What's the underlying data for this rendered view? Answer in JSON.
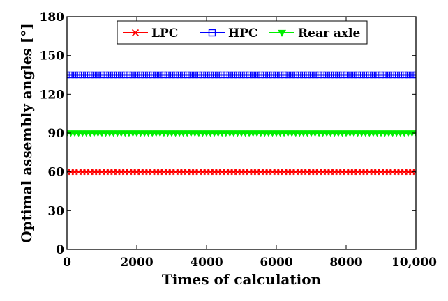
{
  "chart_data": {
    "type": "line",
    "title": "",
    "xlabel": "Times of calculation",
    "ylabel": "Optimal assembly angles [°]",
    "xlim": [
      0,
      10000
    ],
    "ylim": [
      0,
      180
    ],
    "x_ticks": [
      0,
      2000,
      4000,
      6000,
      8000,
      10000
    ],
    "x_tick_labels": [
      "0",
      "2000",
      "4000",
      "6000",
      "8000",
      "10,000"
    ],
    "y_ticks": [
      0,
      30,
      60,
      90,
      120,
      150,
      180
    ],
    "y_tick_labels": [
      "0",
      "30",
      "60",
      "90",
      "120",
      "150",
      "180"
    ],
    "grid": false,
    "legend_position": "top-center",
    "series": [
      {
        "name": "LPC",
        "marker": "x",
        "color": "#ff0000",
        "x": [
          0,
          10000
        ],
        "y": [
          60,
          60
        ]
      },
      {
        "name": "HPC",
        "marker": "square",
        "color": "#0000ff",
        "x": [
          0,
          10000
        ],
        "y": [
          135,
          135
        ]
      },
      {
        "name": "Rear axle",
        "marker": "triangle-down",
        "color": "#00ee00",
        "x": [
          0,
          10000
        ],
        "y": [
          90,
          90
        ]
      }
    ]
  }
}
